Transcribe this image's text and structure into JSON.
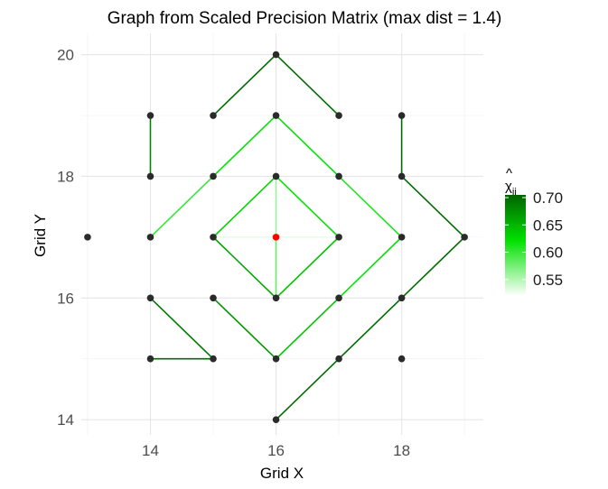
{
  "chart_data": {
    "type": "scatter",
    "subtype": "network-graph",
    "title": "Graph from Scaled Precision Matrix (max dist = 1.4)",
    "xlabel": "Grid X",
    "ylabel": "Grid Y",
    "xlim": [
      12.9,
      19.3
    ],
    "ylim": [
      13.75,
      20.35
    ],
    "x_ticks": [
      14,
      16,
      18
    ],
    "y_ticks": [
      14,
      16,
      18,
      20
    ],
    "grid": true,
    "legend": {
      "title_base": "χ",
      "title_hat": "^",
      "title_sub": "ij",
      "placement": "right",
      "ticks": [
        0.55,
        0.6,
        0.65,
        0.7
      ],
      "range": [
        0.52,
        0.705
      ],
      "colors": {
        "low": "#ffffff",
        "mid": "#00e000",
        "high": "#006400"
      }
    },
    "point_color": "#2b2b2b",
    "highlight_color": "#ff0000",
    "highlight_point": [
      16,
      17
    ],
    "nodes": [
      [
        16,
        20
      ],
      [
        14,
        19
      ],
      [
        15,
        19
      ],
      [
        16,
        19
      ],
      [
        17,
        19
      ],
      [
        18,
        19
      ],
      [
        14,
        18
      ],
      [
        15,
        18
      ],
      [
        16,
        18
      ],
      [
        17,
        18
      ],
      [
        18,
        18
      ],
      [
        13,
        17
      ],
      [
        14,
        17
      ],
      [
        15,
        17
      ],
      [
        16,
        17
      ],
      [
        17,
        17
      ],
      [
        18,
        17
      ],
      [
        19,
        17
      ],
      [
        14,
        16
      ],
      [
        15,
        16
      ],
      [
        16,
        16
      ],
      [
        17,
        16
      ],
      [
        18,
        16
      ],
      [
        14,
        15
      ],
      [
        15,
        15
      ],
      [
        16,
        15
      ],
      [
        17,
        15
      ],
      [
        18,
        15
      ],
      [
        16,
        14
      ]
    ],
    "edges": [
      {
        "from": [
          15,
          19
        ],
        "to": [
          16,
          20
        ],
        "weight": 0.7
      },
      {
        "from": [
          16,
          20
        ],
        "to": [
          17,
          19
        ],
        "weight": 0.7
      },
      {
        "from": [
          14,
          19
        ],
        "to": [
          14,
          18
        ],
        "weight": 0.68
      },
      {
        "from": [
          18,
          19
        ],
        "to": [
          18,
          18
        ],
        "weight": 0.7
      },
      {
        "from": [
          18,
          18
        ],
        "to": [
          19,
          17
        ],
        "weight": 0.7
      },
      {
        "from": [
          19,
          17
        ],
        "to": [
          18,
          16
        ],
        "weight": 0.7
      },
      {
        "from": [
          18,
          16
        ],
        "to": [
          17,
          15
        ],
        "weight": 0.7
      },
      {
        "from": [
          17,
          15
        ],
        "to": [
          16,
          14
        ],
        "weight": 0.7
      },
      {
        "from": [
          14,
          16
        ],
        "to": [
          15,
          15
        ],
        "weight": 0.69
      },
      {
        "from": [
          14,
          15
        ],
        "to": [
          15,
          15
        ],
        "weight": 0.7
      },
      {
        "from": [
          14,
          17
        ],
        "to": [
          15,
          18
        ],
        "weight": 0.6
      },
      {
        "from": [
          15,
          18
        ],
        "to": [
          16,
          19
        ],
        "weight": 0.62
      },
      {
        "from": [
          16,
          19
        ],
        "to": [
          17,
          18
        ],
        "weight": 0.62
      },
      {
        "from": [
          17,
          18
        ],
        "to": [
          18,
          17
        ],
        "weight": 0.61
      },
      {
        "from": [
          18,
          17
        ],
        "to": [
          17,
          16
        ],
        "weight": 0.62
      },
      {
        "from": [
          17,
          16
        ],
        "to": [
          16,
          15
        ],
        "weight": 0.64
      },
      {
        "from": [
          16,
          15
        ],
        "to": [
          15,
          16
        ],
        "weight": 0.67
      },
      {
        "from": [
          15,
          16
        ],
        "to": [
          14,
          17
        ],
        "weight": 0.52
      },
      {
        "from": [
          15,
          17
        ],
        "to": [
          16,
          18
        ],
        "weight": 0.63
      },
      {
        "from": [
          16,
          18
        ],
        "to": [
          17,
          17
        ],
        "weight": 0.62
      },
      {
        "from": [
          17,
          17
        ],
        "to": [
          16,
          16
        ],
        "weight": 0.64
      },
      {
        "from": [
          16,
          16
        ],
        "to": [
          15,
          17
        ],
        "weight": 0.66
      },
      {
        "from": [
          16,
          18
        ],
        "to": [
          16,
          17
        ],
        "weight": 0.56
      },
      {
        "from": [
          16,
          17
        ],
        "to": [
          16,
          16
        ],
        "weight": 0.58
      },
      {
        "from": [
          15,
          17
        ],
        "to": [
          16,
          17
        ],
        "weight": 0.53
      },
      {
        "from": [
          16,
          17
        ],
        "to": [
          17,
          17
        ],
        "weight": 0.53
      },
      {
        "from": [
          13,
          17
        ],
        "to": [
          14,
          17
        ],
        "weight": 0.52
      },
      {
        "from": [
          14,
          17
        ],
        "to": [
          15,
          17
        ],
        "weight": 0.52
      },
      {
        "from": [
          17,
          17
        ],
        "to": [
          18,
          17
        ],
        "weight": 0.52
      },
      {
        "from": [
          18,
          17
        ],
        "to": [
          19,
          17
        ],
        "weight": 0.52
      },
      {
        "from": [
          15,
          17
        ],
        "to": [
          15,
          16
        ],
        "weight": 0.52
      },
      {
        "from": [
          16,
          16
        ],
        "to": [
          16,
          15
        ],
        "weight": 0.52
      }
    ]
  }
}
